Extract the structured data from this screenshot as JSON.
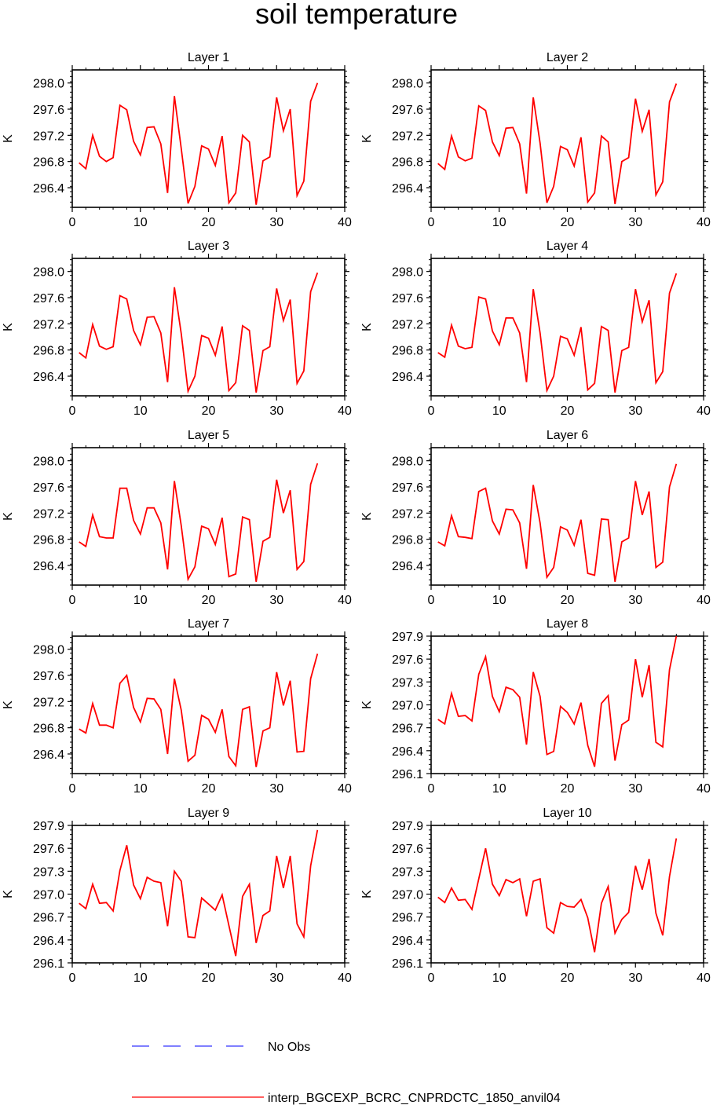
{
  "title": "soil temperature",
  "colors": {
    "model": "#ff0000",
    "obs": "#3333ff",
    "axis": "#000000"
  },
  "legend": {
    "obs_label": "No Obs",
    "model_label": "interp_BGCEXP_BCRC_CNPRDCTC_1850_anvil04"
  },
  "chart_data": [
    {
      "type": "line",
      "title": "Layer 1",
      "ylabel": "K",
      "xlim": [
        0,
        40
      ],
      "xticks": [
        0,
        10,
        20,
        30,
        40
      ],
      "ylim": [
        296.1,
        298.2
      ],
      "yticks": [
        296.4,
        296.8,
        297.2,
        297.6,
        298.0
      ],
      "ytick_labels": [
        "296.4",
        "296.8",
        "297.2",
        "297.6",
        "298.0"
      ],
      "x": [
        1,
        2,
        3,
        4,
        5,
        6,
        7,
        8,
        9,
        10,
        11,
        12,
        13,
        14,
        15,
        16,
        17,
        18,
        19,
        20,
        21,
        22,
        23,
        24,
        25,
        26,
        27,
        28,
        29,
        30,
        31,
        32,
        33,
        34,
        35,
        36
      ],
      "series": [
        {
          "values": [
            296.78,
            296.69,
            297.2,
            296.88,
            296.8,
            296.86,
            297.66,
            297.59,
            297.11,
            296.9,
            297.32,
            297.33,
            297.07,
            296.32,
            297.8,
            297.0,
            296.16,
            296.42,
            297.04,
            296.99,
            296.74,
            297.19,
            296.17,
            296.32,
            297.2,
            297.1,
            296.14,
            296.81,
            296.87,
            297.78,
            297.27,
            297.6,
            296.28,
            296.5,
            297.72,
            298.0
          ]
        }
      ]
    },
    {
      "type": "line",
      "title": "Layer 2",
      "ylabel": "K",
      "xlim": [
        0,
        40
      ],
      "xticks": [
        0,
        10,
        20,
        30,
        40
      ],
      "ylim": [
        296.1,
        298.2
      ],
      "yticks": [
        296.4,
        296.8,
        297.2,
        297.6,
        298.0
      ],
      "ytick_labels": [
        "296.4",
        "296.8",
        "297.2",
        "297.6",
        "298.0"
      ],
      "x": [
        1,
        2,
        3,
        4,
        5,
        6,
        7,
        8,
        9,
        10,
        11,
        12,
        13,
        14,
        15,
        16,
        17,
        18,
        19,
        20,
        21,
        22,
        23,
        24,
        25,
        26,
        27,
        28,
        29,
        30,
        31,
        32,
        33,
        34,
        35,
        36
      ],
      "series": [
        {
          "values": [
            296.77,
            296.68,
            297.19,
            296.87,
            296.81,
            296.85,
            297.65,
            297.58,
            297.1,
            296.89,
            297.31,
            297.32,
            297.07,
            296.31,
            297.78,
            297.08,
            296.17,
            296.42,
            297.03,
            296.98,
            296.73,
            297.17,
            296.18,
            296.32,
            297.19,
            297.1,
            296.15,
            296.8,
            296.86,
            297.76,
            297.26,
            297.59,
            296.29,
            296.49,
            297.71,
            297.99
          ]
        }
      ]
    },
    {
      "type": "line",
      "title": "Layer 3",
      "ylabel": "K",
      "xlim": [
        0,
        40
      ],
      "xticks": [
        0,
        10,
        20,
        30,
        40
      ],
      "ylim": [
        296.1,
        298.2
      ],
      "yticks": [
        296.4,
        296.8,
        297.2,
        297.6,
        298.0
      ],
      "ytick_labels": [
        "296.4",
        "296.8",
        "297.2",
        "297.6",
        "298.0"
      ],
      "x": [
        1,
        2,
        3,
        4,
        5,
        6,
        7,
        8,
        9,
        10,
        11,
        12,
        13,
        14,
        15,
        16,
        17,
        18,
        19,
        20,
        21,
        22,
        23,
        24,
        25,
        26,
        27,
        28,
        29,
        30,
        31,
        32,
        33,
        34,
        35,
        36
      ],
      "series": [
        {
          "values": [
            296.76,
            296.68,
            297.19,
            296.86,
            296.81,
            296.85,
            297.63,
            297.58,
            297.1,
            296.88,
            297.3,
            297.31,
            297.06,
            296.31,
            297.76,
            297.05,
            296.17,
            296.4,
            297.02,
            296.98,
            296.72,
            297.16,
            296.18,
            296.3,
            297.17,
            297.1,
            296.15,
            296.79,
            296.85,
            297.74,
            297.25,
            297.57,
            296.29,
            296.48,
            297.69,
            297.98
          ]
        }
      ]
    },
    {
      "type": "line",
      "title": "Layer 4",
      "ylabel": "K",
      "xlim": [
        0,
        40
      ],
      "xticks": [
        0,
        10,
        20,
        30,
        40
      ],
      "ylim": [
        296.1,
        298.2
      ],
      "yticks": [
        296.4,
        296.8,
        297.2,
        297.6,
        298.0
      ],
      "ytick_labels": [
        "296.4",
        "296.8",
        "297.2",
        "297.6",
        "298.0"
      ],
      "x": [
        1,
        2,
        3,
        4,
        5,
        6,
        7,
        8,
        9,
        10,
        11,
        12,
        13,
        14,
        15,
        16,
        17,
        18,
        19,
        20,
        21,
        22,
        23,
        24,
        25,
        26,
        27,
        28,
        29,
        30,
        31,
        32,
        33,
        34,
        35,
        36
      ],
      "series": [
        {
          "values": [
            296.76,
            296.69,
            297.18,
            296.86,
            296.82,
            296.84,
            297.61,
            297.58,
            297.09,
            296.88,
            297.29,
            297.29,
            297.06,
            296.31,
            297.73,
            297.06,
            296.18,
            296.4,
            297.01,
            296.97,
            296.72,
            297.15,
            296.19,
            296.29,
            297.16,
            297.1,
            296.15,
            296.79,
            296.84,
            297.73,
            297.23,
            297.56,
            296.3,
            296.47,
            297.67,
            297.97
          ]
        }
      ]
    },
    {
      "type": "line",
      "title": "Layer 5",
      "ylabel": "K",
      "xlim": [
        0,
        40
      ],
      "xticks": [
        0,
        10,
        20,
        30,
        40
      ],
      "ylim": [
        296.1,
        298.2
      ],
      "yticks": [
        296.4,
        296.8,
        297.2,
        297.6,
        298.0
      ],
      "ytick_labels": [
        "296.4",
        "296.8",
        "297.2",
        "297.6",
        "298.0"
      ],
      "x": [
        1,
        2,
        3,
        4,
        5,
        6,
        7,
        8,
        9,
        10,
        11,
        12,
        13,
        14,
        15,
        16,
        17,
        18,
        19,
        20,
        21,
        22,
        23,
        24,
        25,
        26,
        27,
        28,
        29,
        30,
        31,
        32,
        33,
        34,
        35,
        36
      ],
      "series": [
        {
          "values": [
            296.76,
            296.69,
            297.17,
            296.84,
            296.82,
            296.82,
            297.58,
            297.58,
            297.09,
            296.88,
            297.28,
            297.28,
            297.05,
            296.34,
            297.69,
            297.01,
            296.19,
            296.38,
            297.0,
            296.96,
            296.72,
            297.13,
            296.23,
            296.27,
            297.14,
            297.1,
            296.15,
            296.77,
            296.83,
            297.71,
            297.2,
            297.55,
            296.34,
            296.46,
            297.64,
            297.96
          ]
        }
      ]
    },
    {
      "type": "line",
      "title": "Layer 6",
      "ylabel": "K",
      "xlim": [
        0,
        40
      ],
      "xticks": [
        0,
        10,
        20,
        30,
        40
      ],
      "ylim": [
        296.1,
        298.2
      ],
      "yticks": [
        296.4,
        296.8,
        297.2,
        297.6,
        298.0
      ],
      "ytick_labels": [
        "296.4",
        "296.8",
        "297.2",
        "297.6",
        "298.0"
      ],
      "x": [
        1,
        2,
        3,
        4,
        5,
        6,
        7,
        8,
        9,
        10,
        11,
        12,
        13,
        14,
        15,
        16,
        17,
        18,
        19,
        20,
        21,
        22,
        23,
        24,
        25,
        26,
        27,
        28,
        29,
        30,
        31,
        32,
        33,
        34,
        35,
        36
      ],
      "series": [
        {
          "values": [
            296.76,
            296.7,
            297.16,
            296.84,
            296.83,
            296.81,
            297.53,
            297.58,
            297.08,
            296.88,
            297.26,
            297.25,
            297.05,
            296.35,
            297.63,
            297.05,
            296.22,
            296.37,
            296.99,
            296.94,
            296.71,
            297.1,
            296.28,
            296.25,
            297.11,
            297.1,
            296.15,
            296.76,
            296.82,
            297.69,
            297.17,
            297.53,
            296.37,
            296.45,
            297.6,
            297.95
          ]
        }
      ]
    },
    {
      "type": "line",
      "title": "Layer 7",
      "ylabel": "K",
      "xlim": [
        0,
        40
      ],
      "xticks": [
        0,
        10,
        20,
        30,
        40
      ],
      "ylim": [
        296.1,
        298.2
      ],
      "yticks": [
        296.4,
        296.8,
        297.2,
        297.6,
        298.0
      ],
      "ytick_labels": [
        "296.4",
        "296.8",
        "297.2",
        "297.6",
        "298.0"
      ],
      "x": [
        1,
        2,
        3,
        4,
        5,
        6,
        7,
        8,
        9,
        10,
        11,
        12,
        13,
        14,
        15,
        16,
        17,
        18,
        19,
        20,
        21,
        22,
        23,
        24,
        25,
        26,
        27,
        28,
        29,
        30,
        31,
        32,
        33,
        34,
        35,
        36
      ],
      "series": [
        {
          "values": [
            296.78,
            296.72,
            297.17,
            296.84,
            296.84,
            296.8,
            297.48,
            297.6,
            297.11,
            296.89,
            297.25,
            297.24,
            297.08,
            296.4,
            297.55,
            297.07,
            296.29,
            296.38,
            296.99,
            296.93,
            296.73,
            297.08,
            296.36,
            296.22,
            297.08,
            297.12,
            296.2,
            296.75,
            296.8,
            297.65,
            297.14,
            297.52,
            296.43,
            296.44,
            297.55,
            297.93
          ]
        }
      ]
    },
    {
      "type": "line",
      "title": "Layer 8",
      "ylabel": "K",
      "xlim": [
        0,
        40
      ],
      "xticks": [
        0,
        10,
        20,
        30,
        40
      ],
      "ylim": [
        296.1,
        297.9
      ],
      "yticks": [
        296.1,
        296.4,
        296.7,
        297.0,
        297.3,
        297.6,
        297.9
      ],
      "ytick_labels": [
        "296.1",
        "296.4",
        "296.7",
        "297.0",
        "297.3",
        "297.6",
        "297.9"
      ],
      "x": [
        1,
        2,
        3,
        4,
        5,
        6,
        7,
        8,
        9,
        10,
        11,
        12,
        13,
        14,
        15,
        16,
        17,
        18,
        19,
        20,
        21,
        22,
        23,
        24,
        25,
        26,
        27,
        28,
        29,
        30,
        31,
        32,
        33,
        34,
        35,
        36
      ],
      "series": [
        {
          "values": [
            296.81,
            296.75,
            297.15,
            296.85,
            296.86,
            296.79,
            297.4,
            297.63,
            297.11,
            296.91,
            297.23,
            297.2,
            297.1,
            296.48,
            297.43,
            297.11,
            296.35,
            296.39,
            296.98,
            296.9,
            296.75,
            297.03,
            296.47,
            296.19,
            297.02,
            297.12,
            296.27,
            296.74,
            296.8,
            297.6,
            297.1,
            297.52,
            296.51,
            296.45,
            297.46,
            297.9
          ]
        }
      ]
    },
    {
      "type": "line",
      "title": "Layer 9",
      "ylabel": "K",
      "xlim": [
        0,
        40
      ],
      "xticks": [
        0,
        10,
        20,
        30,
        40
      ],
      "ylim": [
        296.1,
        297.9
      ],
      "yticks": [
        296.1,
        296.4,
        296.7,
        297.0,
        297.3,
        297.6,
        297.9
      ],
      "ytick_labels": [
        "296.1",
        "296.4",
        "296.7",
        "297.0",
        "297.3",
        "297.6",
        "297.9"
      ],
      "x": [
        1,
        2,
        3,
        4,
        5,
        6,
        7,
        8,
        9,
        10,
        11,
        12,
        13,
        14,
        15,
        16,
        17,
        18,
        19,
        20,
        21,
        22,
        23,
        24,
        25,
        26,
        27,
        28,
        29,
        30,
        31,
        32,
        33,
        34,
        35,
        36
      ],
      "series": [
        {
          "values": [
            296.88,
            296.81,
            297.13,
            296.88,
            296.89,
            296.78,
            297.31,
            297.64,
            297.12,
            296.94,
            297.22,
            297.17,
            297.15,
            296.58,
            297.3,
            297.17,
            296.44,
            296.43,
            296.95,
            296.87,
            296.79,
            296.99,
            296.59,
            296.19,
            296.97,
            297.13,
            296.36,
            296.72,
            296.78,
            297.5,
            297.08,
            297.5,
            296.61,
            296.44,
            297.37,
            297.84
          ]
        }
      ]
    },
    {
      "type": "line",
      "title": "Layer 10",
      "ylabel": "K",
      "xlim": [
        0,
        40
      ],
      "xticks": [
        0,
        10,
        20,
        30,
        40
      ],
      "ylim": [
        296.1,
        297.9
      ],
      "yticks": [
        296.1,
        296.4,
        296.7,
        297.0,
        297.3,
        297.6,
        297.9
      ],
      "ytick_labels": [
        "296.1",
        "296.4",
        "296.7",
        "297.0",
        "297.3",
        "297.6",
        "297.9"
      ],
      "x": [
        1,
        2,
        3,
        4,
        5,
        6,
        7,
        8,
        9,
        10,
        11,
        12,
        13,
        14,
        15,
        16,
        17,
        18,
        19,
        20,
        21,
        22,
        23,
        24,
        25,
        26,
        27,
        28,
        29,
        30,
        31,
        32,
        33,
        34,
        35,
        36
      ],
      "series": [
        {
          "values": [
            296.96,
            296.89,
            297.08,
            296.92,
            296.93,
            296.8,
            297.2,
            297.6,
            297.13,
            296.98,
            297.19,
            297.15,
            297.2,
            296.71,
            297.17,
            297.2,
            296.56,
            296.49,
            296.89,
            296.84,
            296.83,
            296.93,
            296.69,
            296.24,
            296.88,
            297.1,
            296.49,
            296.67,
            296.76,
            297.37,
            297.06,
            297.46,
            296.75,
            296.46,
            297.23,
            297.73
          ]
        }
      ]
    }
  ]
}
